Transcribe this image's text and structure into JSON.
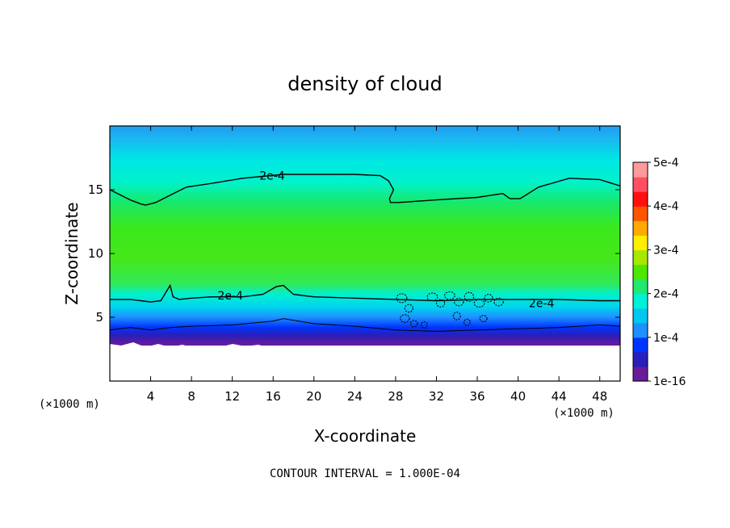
{
  "chart_data": {
    "type": "heatmap",
    "title": "density of cloud",
    "xlabel": "X-coordinate",
    "ylabel": "Z-coordinate",
    "x_unit": "(×1000 m)",
    "x_unit_right": "(×1000 m)",
    "xlim": [
      0,
      50
    ],
    "ylim": [
      0,
      20
    ],
    "x_ticks": [
      4,
      8,
      12,
      16,
      20,
      24,
      28,
      32,
      36,
      40,
      44,
      48
    ],
    "y_ticks": [
      5,
      10,
      15
    ],
    "colorbar": {
      "min": 0,
      "max": 0.0005,
      "labels": [
        {
          "value": 0,
          "text": "1e-16"
        },
        {
          "value": 0.0001,
          "text": "1e-4"
        },
        {
          "value": 0.0002,
          "text": "2e-4"
        },
        {
          "value": 0.0003,
          "text": "3e-4"
        },
        {
          "value": 0.0004,
          "text": "4e-4"
        },
        {
          "value": 0.0005,
          "text": "5e-4"
        }
      ],
      "colors": [
        "#6a1b9a",
        "#2a1fb8",
        "#0033ff",
        "#1e90ff",
        "#00c8f0",
        "#00f0d8",
        "#20e870",
        "#4ce800",
        "#a8e800",
        "#ffee00",
        "#ffaa00",
        "#ff5500",
        "#ff1010",
        "#ff5060",
        "#ff9a9a"
      ]
    },
    "contours": [
      {
        "label": "2e-4",
        "label_x": 15.9,
        "label_z": 16.1,
        "x": [
          0,
          1,
          2,
          3,
          3.5,
          4.5,
          6,
          7.5,
          10,
          13,
          17,
          20,
          24,
          26.5,
          27.3,
          27.8,
          27.4,
          27.5,
          28.3,
          32,
          36,
          38.5,
          39.2,
          40.2,
          42,
          45,
          48,
          50
        ],
        "z": [
          15.0,
          14.6,
          14.2,
          13.9,
          13.8,
          14.0,
          14.6,
          15.2,
          15.5,
          15.9,
          16.2,
          16.2,
          16.2,
          16.1,
          15.7,
          15.0,
          14.3,
          14.0,
          14.0,
          14.2,
          14.4,
          14.7,
          14.3,
          14.3,
          15.2,
          15.9,
          15.8,
          15.3
        ]
      },
      {
        "label": "2e-4",
        "label_x": 11.8,
        "label_z": 6.7,
        "x": [
          0,
          2,
          4,
          5,
          5.9,
          6.2,
          6.8,
          8,
          10,
          13,
          15,
          16.3,
          17,
          18,
          20,
          24,
          28,
          32,
          36,
          40,
          44,
          48,
          50
        ],
        "z": [
          6.4,
          6.4,
          6.2,
          6.3,
          7.5,
          6.6,
          6.4,
          6.5,
          6.6,
          6.6,
          6.8,
          7.4,
          7.5,
          6.8,
          6.6,
          6.5,
          6.4,
          6.3,
          6.4,
          6.4,
          6.4,
          6.3,
          6.3
        ]
      },
      {
        "label": "",
        "label_x": 0,
        "label_z": 0,
        "x": [
          0,
          2,
          4,
          6,
          8,
          12,
          16,
          17,
          20,
          24,
          28,
          32,
          36,
          40,
          44,
          48,
          50
        ],
        "z": [
          4.0,
          4.2,
          4.0,
          4.2,
          4.3,
          4.4,
          4.7,
          4.9,
          4.5,
          4.3,
          4.0,
          3.9,
          4.0,
          4.1,
          4.2,
          4.4,
          4.3
        ]
      },
      {
        "label": "2e-4",
        "label_x": 42.3,
        "label_z": 6.1,
        "x": [],
        "z": []
      }
    ],
    "interval_note": "CONTOUR INTERVAL = 1.000E-04"
  }
}
